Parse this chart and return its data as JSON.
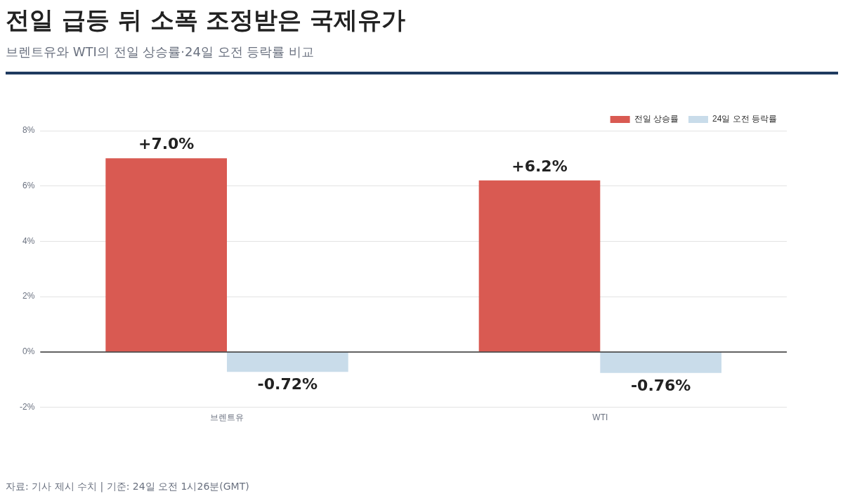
{
  "chart_data": {
    "type": "bar",
    "title": "전일 급등 뒤 소폭 조정받은 국제유가",
    "subtitle": "브렌트유와 WTI의 전일 상승률·24일 오전 등락률 비교",
    "categories": [
      "브렌트유",
      "WTI"
    ],
    "series": [
      {
        "name": "전일 상승률",
        "color": "#d95a52",
        "values": [
          7.0,
          6.2
        ],
        "value_labels": [
          "+7.0%",
          "+6.2%"
        ]
      },
      {
        "name": "24일 오전 등락률",
        "color": "#c9dcea",
        "values": [
          -0.72,
          -0.76
        ],
        "value_labels": [
          "-0.72%",
          "-0.76%"
        ]
      }
    ],
    "ylim": [
      -2,
      8
    ],
    "yticks": [
      {
        "value": -2,
        "label": "-2%"
      },
      {
        "value": 0,
        "label": "0%"
      },
      {
        "value": 2,
        "label": "2%"
      },
      {
        "value": 4,
        "label": "4%"
      },
      {
        "value": 6,
        "label": "6%"
      },
      {
        "value": 8,
        "label": "8%"
      }
    ],
    "grid": "y",
    "legend": "top right",
    "annotations": [
      "자료: 기사 제시 수치 | 기준: 24일 오전 1시26분(GMT)"
    ]
  }
}
